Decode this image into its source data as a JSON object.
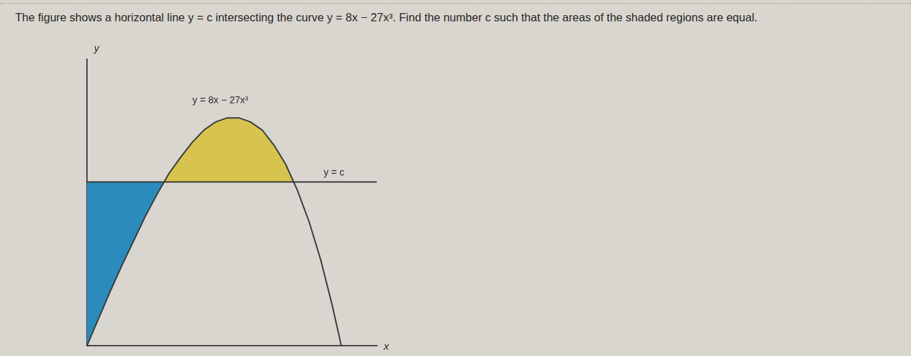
{
  "question": "The figure shows a horizontal line y = c intersecting the curve y = 8x − 27x³. Find the number c such that the areas of the shaded regions are equal.",
  "chart_data": {
    "type": "line",
    "xlabel": "x",
    "ylabel": "y",
    "x": [
      0,
      0.025,
      0.05,
      0.075,
      0.1,
      0.125,
      0.15,
      0.175,
      0.2,
      0.225,
      0.25,
      0.275,
      0.3,
      0.325,
      0.35,
      0.375,
      0.4,
      0.425,
      0.45,
      0.475,
      0.5,
      0.525,
      0.544,
      0.62
    ],
    "series": [
      {
        "name": "y = 8x − 27x³",
        "color": "#3a3a3a",
        "values": [
          0,
          0.2,
          0.4,
          0.59,
          0.77,
          0.95,
          1.11,
          1.26,
          1.38,
          1.49,
          1.58,
          1.64,
          1.67,
          1.67,
          1.64,
          1.58,
          1.47,
          1.33,
          1.14,
          0.91,
          0.63,
          0.29,
          0,
          null
        ]
      },
      {
        "name": "y = c",
        "color": "#3a3a3a",
        "values": [
          1.2,
          1.2,
          1.2,
          1.2,
          1.2,
          1.2,
          1.2,
          1.2,
          1.2,
          1.2,
          1.2,
          1.2,
          1.2,
          1.2,
          1.2,
          1.2,
          1.2,
          1.2,
          1.2,
          1.2,
          1.2,
          1.2,
          1.2,
          1.2
        ]
      }
    ],
    "xlim": [
      0,
      0.62
    ],
    "ylim": [
      0,
      2.1
    ],
    "grid": false,
    "tick_labels": false
  }
}
